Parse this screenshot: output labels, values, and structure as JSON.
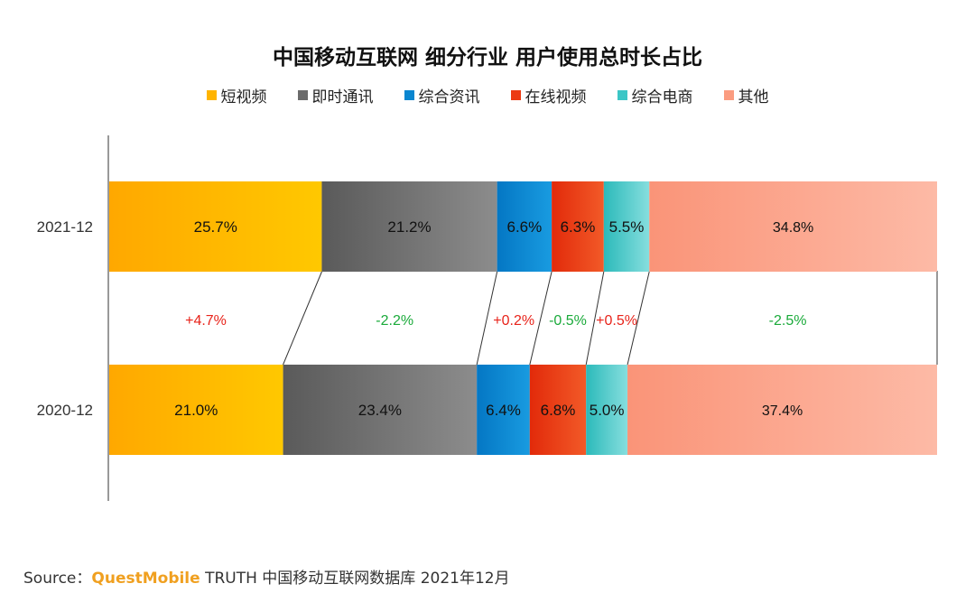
{
  "colors": {
    "短视频": "#ffb400",
    "即时通讯": "#6b6b6b",
    "综合资讯": "#0a86d0",
    "在线视频": "#ec3a12",
    "综合电商": "#3cc6c6",
    "其他": "#fb9c80",
    "positive": "#e8231a",
    "negative": "#1aaa3a"
  },
  "chart_data": {
    "type": "bar",
    "orientation": "horizontal-stacked-100",
    "title": "中国移动互联网 细分行业 用户使用总时长占比",
    "legend_position": "top",
    "categories": [
      "2021-12",
      "2020-12"
    ],
    "series": [
      {
        "name": "短视频",
        "values": [
          25.7,
          21.0
        ],
        "labels": [
          "25.7%",
          "21.0%"
        ]
      },
      {
        "name": "即时通讯",
        "values": [
          21.2,
          23.4
        ],
        "labels": [
          "21.2%",
          "23.4%"
        ]
      },
      {
        "name": "综合资讯",
        "values": [
          6.6,
          6.4
        ],
        "labels": [
          "6.6%",
          "6.4%"
        ]
      },
      {
        "name": "在线视频",
        "values": [
          6.3,
          6.8
        ],
        "labels": [
          "6.3%",
          "6.8%"
        ]
      },
      {
        "name": "综合电商",
        "values": [
          5.5,
          5.0
        ],
        "labels": [
          "5.5%",
          "5.0%"
        ]
      },
      {
        "name": "其他",
        "values": [
          34.8,
          37.4
        ],
        "labels": [
          "34.8%",
          "37.4%"
        ]
      }
    ],
    "changes": [
      "+4.7%",
      "-2.2%",
      "+0.2%",
      "-0.5%",
      "+0.5%",
      "-2.5%"
    ],
    "change_signs": [
      "positive",
      "negative",
      "positive",
      "negative",
      "positive",
      "negative"
    ],
    "xlim": [
      0,
      100
    ]
  },
  "source": {
    "prefix": "Source：",
    "brand": "QuestMobile",
    "text": " TRUTH 中国移动互联网数据库 2021年12月"
  }
}
